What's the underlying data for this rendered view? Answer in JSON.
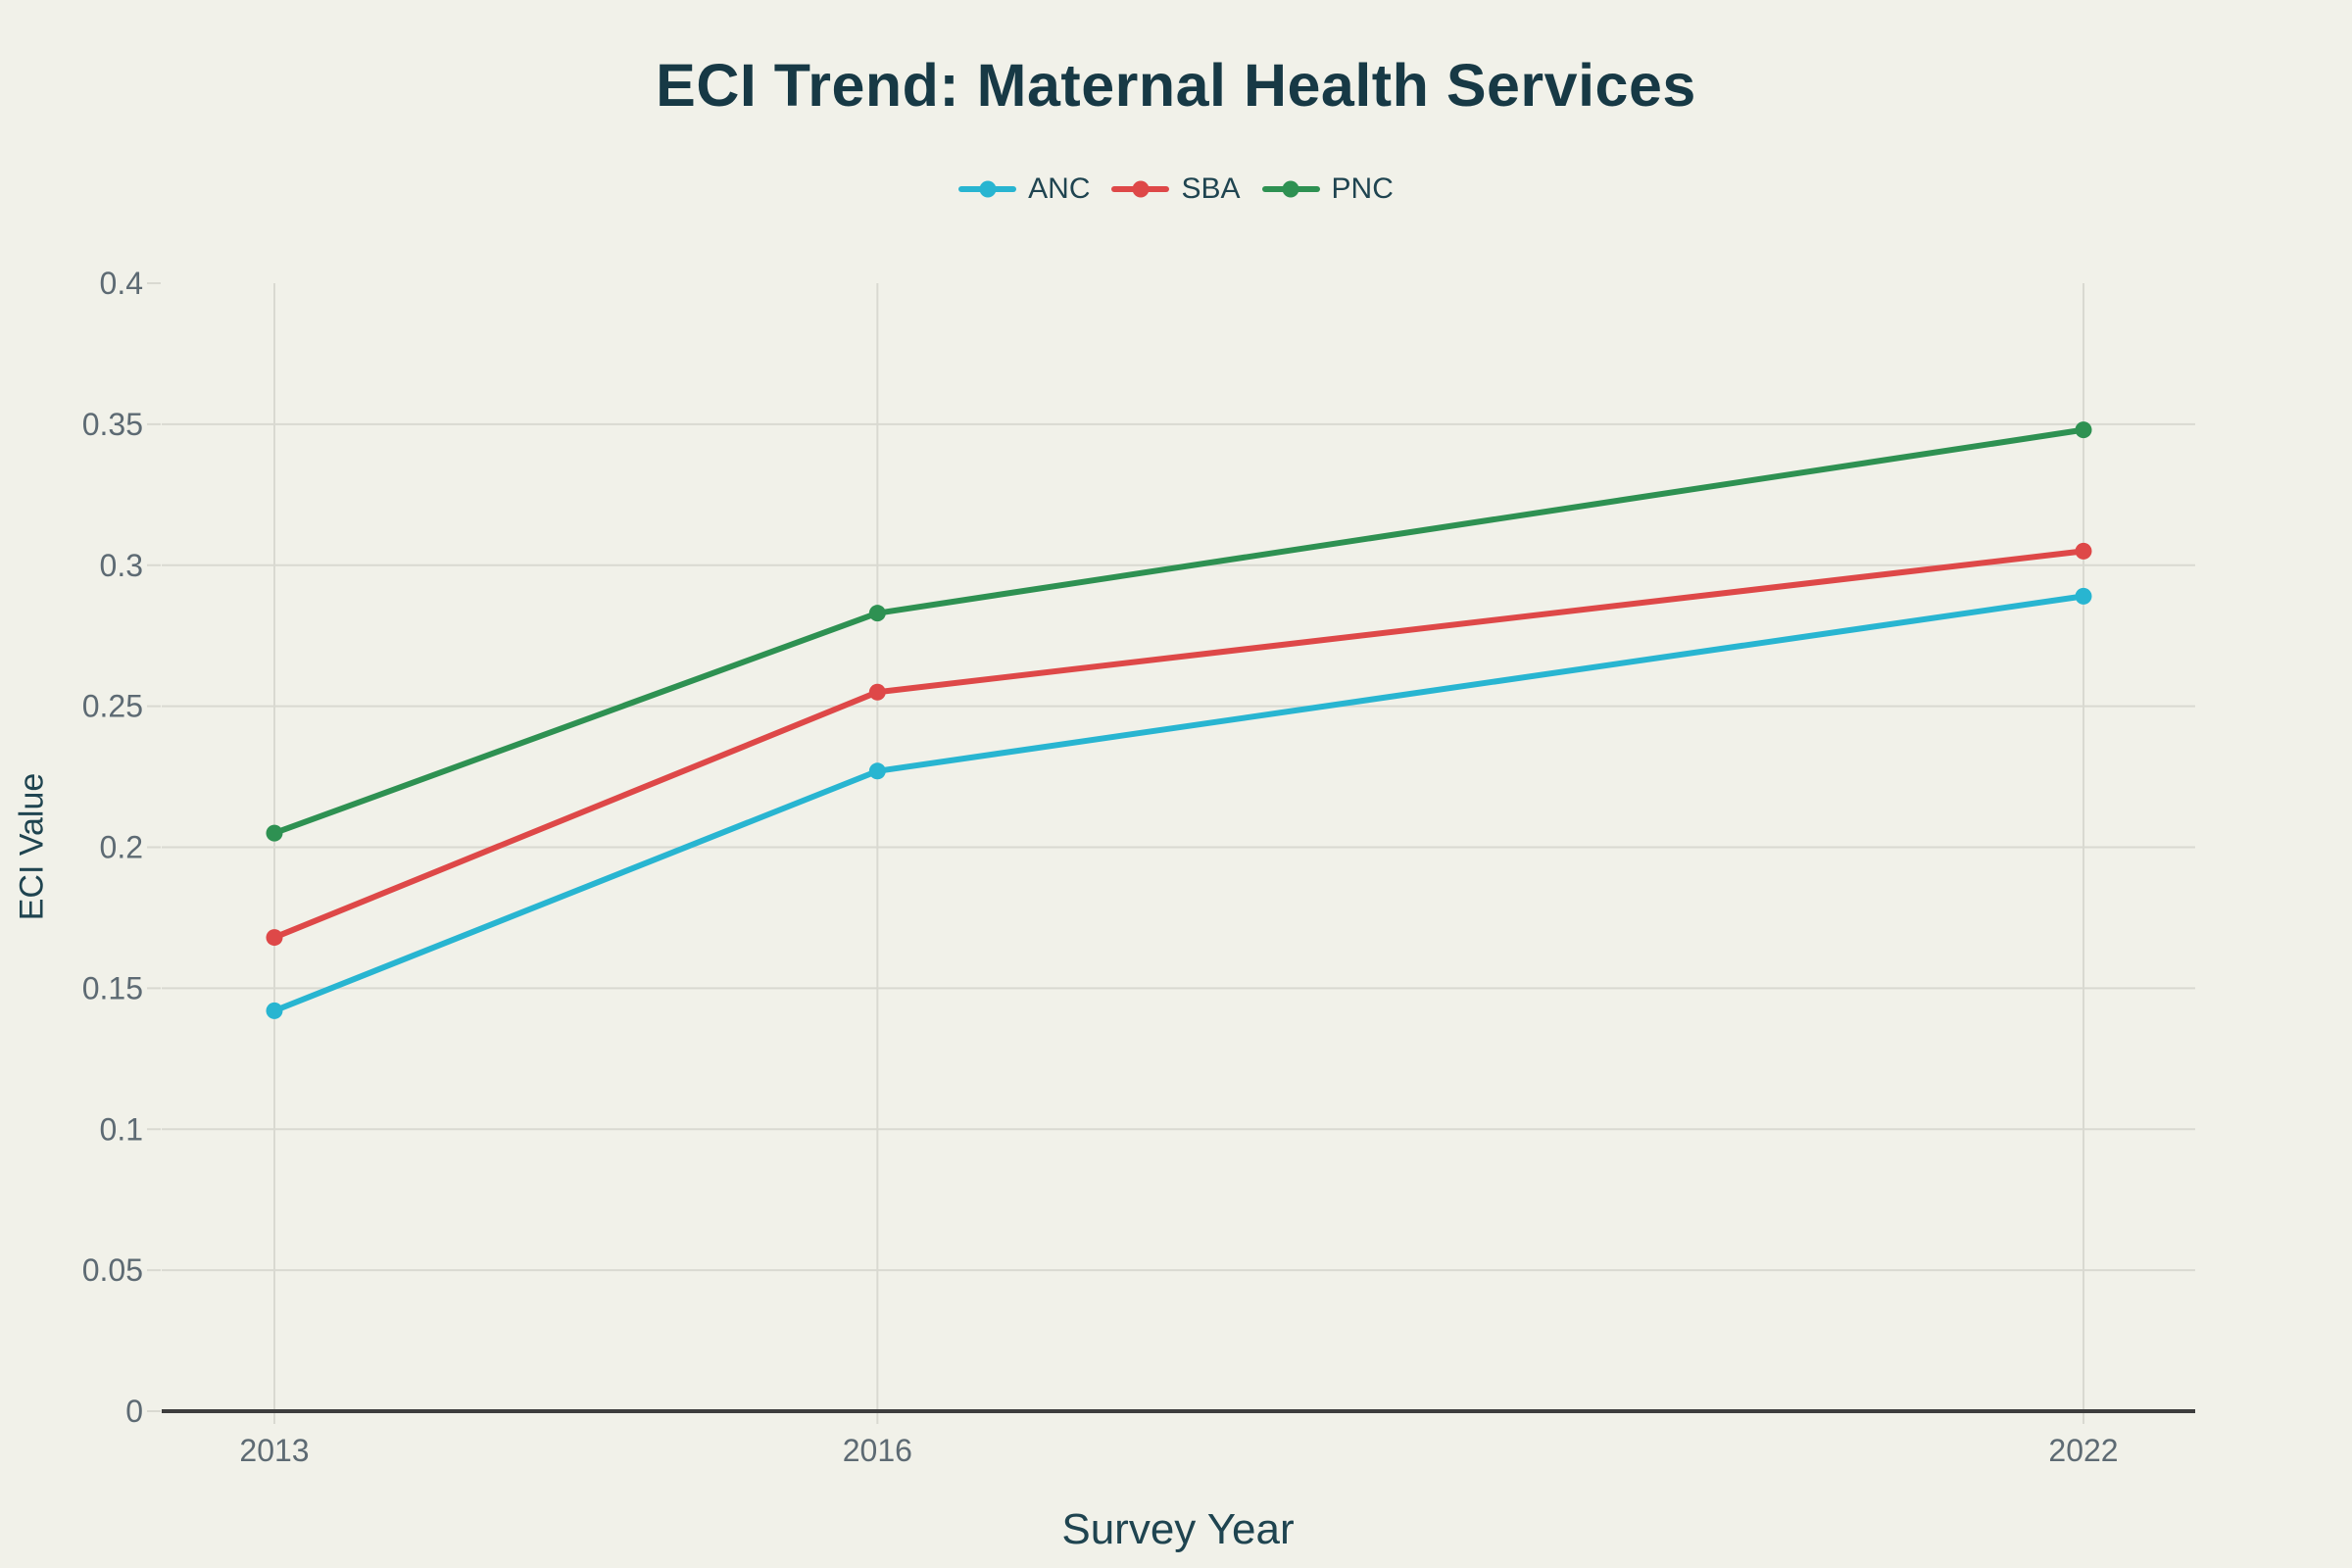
{
  "title": "ECI Trend: Maternal Health Services",
  "chart_data": {
    "type": "line",
    "x": [
      2013,
      2016,
      2022
    ],
    "x_tick_labels": [
      "2013",
      "2016",
      "2022"
    ],
    "series": [
      {
        "name": "ANC",
        "color": "#28b5d1",
        "values": [
          0.142,
          0.227,
          0.289
        ]
      },
      {
        "name": "SBA",
        "color": "#de4848",
        "values": [
          0.168,
          0.255,
          0.305
        ]
      },
      {
        "name": "PNC",
        "color": "#2e9152",
        "values": [
          0.205,
          0.283,
          0.348
        ]
      }
    ],
    "xlabel": "Survey Year",
    "ylabel": "ECI Value",
    "ylim": [
      0,
      0.4
    ],
    "y_ticks": [
      0,
      0.05,
      0.1,
      0.15,
      0.2,
      0.25,
      0.3,
      0.35,
      0.4
    ],
    "y_tick_labels": [
      "0",
      "0.05",
      "0.1",
      "0.15",
      "0.2",
      "0.25",
      "0.3",
      "0.35",
      "0.4"
    ],
    "grid": true,
    "legend_position": "top-center"
  },
  "colors": {
    "background": "#f1f1e9",
    "title": "#173945",
    "axis_title": "#1f4450",
    "legend_text": "#1f4450",
    "tick_label": "#5d6a73",
    "gridline": "#d9d9d1",
    "axis_line": "#3d3d3d"
  }
}
